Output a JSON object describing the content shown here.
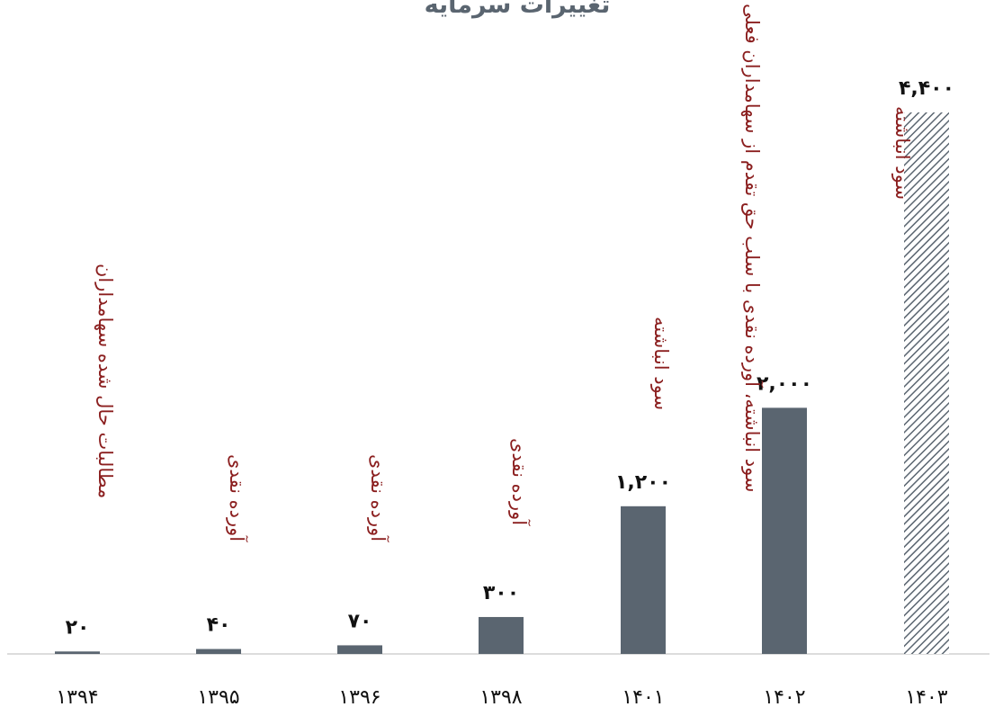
{
  "chart_data": {
    "type": "bar",
    "title": "تغییرات سرمایه",
    "categories": [
      "۱۳۹۴",
      "۱۳۹۵",
      "۱۳۹۶",
      "۱۳۹۸",
      "۱۴۰۱",
      "۱۴۰۲",
      "۱۴۰۳"
    ],
    "values": [
      20,
      40,
      70,
      300,
      1200,
      2000,
      4400
    ],
    "value_labels": [
      "۲۰",
      "۴۰",
      "۷۰",
      "۳۰۰",
      "۱,۲۰۰",
      "۲,۰۰۰",
      "۴,۴۰۰"
    ],
    "annotations": [
      "مطالبات حال شده سهامداران",
      "آورده نقدی",
      "آورده نقدی",
      "آورده نقدی",
      "سود انباشته",
      "سود انباشته، آورده نقدی با سلب حق تقدم از سهامداران فعلی",
      "سود انباشته"
    ],
    "hatched": [
      false,
      false,
      false,
      false,
      false,
      false,
      true
    ],
    "ylim": [
      0,
      4400
    ],
    "grid": false,
    "colors": {
      "bar": "#5a6570",
      "annotation": "#8b1f1f",
      "axis": "#d0d0d0"
    }
  }
}
